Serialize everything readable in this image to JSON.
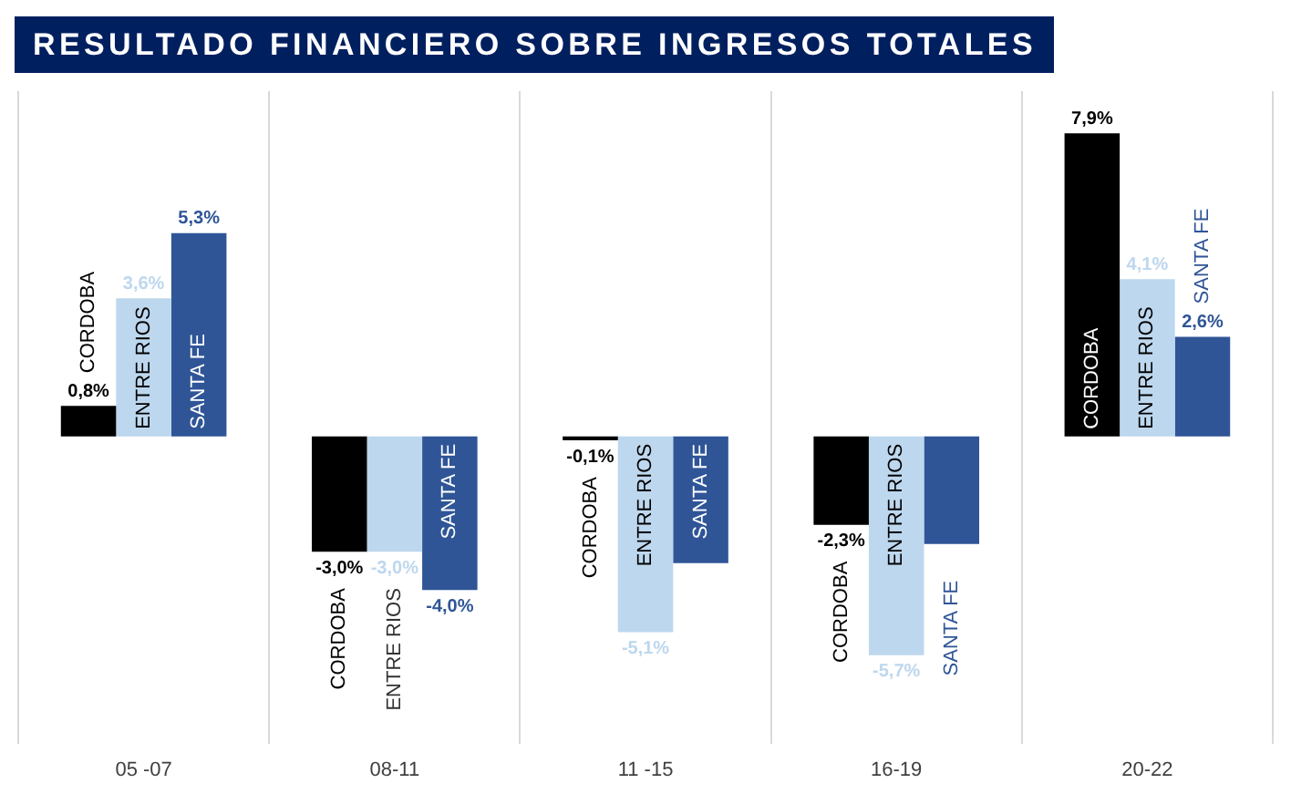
{
  "chart_data": {
    "type": "bar",
    "title": "RESULTADO FINANCIERO SOBRE INGRESOS TOTALES",
    "categories": [
      "05 -07",
      "08-11",
      "11 -15",
      "16-19",
      "20-22"
    ],
    "series": [
      {
        "name": "CORDOBA",
        "color": "#000000",
        "values": [
          0.8,
          -3.0,
          -0.1,
          -2.3,
          7.9
        ],
        "value_labels": [
          "0,8%",
          "-3,0%",
          "-0,1%",
          "-2,3%",
          "7,9%"
        ]
      },
      {
        "name": "ENTRE RIOS",
        "color": "#bdd7ee",
        "values": [
          3.6,
          -3.0,
          -5.1,
          -5.7,
          4.1
        ],
        "value_labels": [
          "3,6%",
          "-3,0%",
          "-5,1%",
          "-5,7%",
          "4,1%"
        ]
      },
      {
        "name": "SANTA FE",
        "color": "#2f5597",
        "values": [
          5.3,
          -4.0,
          -3.3,
          -2.8,
          2.6
        ],
        "value_labels": [
          "5,3%",
          "-4,0%",
          null,
          null,
          "2,6%"
        ]
      }
    ],
    "ylim": [
      -8,
      9
    ],
    "grid": "x",
    "legend": false
  }
}
